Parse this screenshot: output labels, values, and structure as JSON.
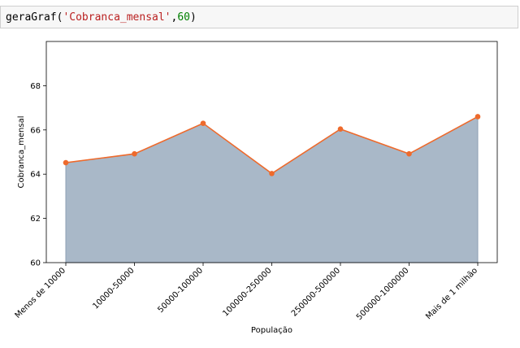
{
  "code_cell": {
    "func": "geraGraf",
    "open": "(",
    "arg_str": "'Cobranca_mensal'",
    "comma": ",",
    "arg_num": "60",
    "close": ")"
  },
  "chart_data": {
    "type": "area",
    "title": "",
    "xlabel": "População",
    "ylabel": "Cobranca_mensal",
    "categories": [
      "Menos de 10000",
      "10000-50000",
      "50000-100000",
      "100000-250000",
      "250000-500000",
      "500000-1000000",
      "Mais de 1 milhão"
    ],
    "values": [
      64.52,
      64.92,
      66.3,
      64.03,
      66.04,
      64.92,
      66.6
    ],
    "ylim": [
      60,
      70
    ],
    "yticks": [
      60,
      62,
      64,
      66,
      68
    ],
    "grid": false,
    "line_color": "#ee6a2c",
    "fill_color": "#a9b8c8",
    "fill_edge_color": "#8d9fb3"
  }
}
